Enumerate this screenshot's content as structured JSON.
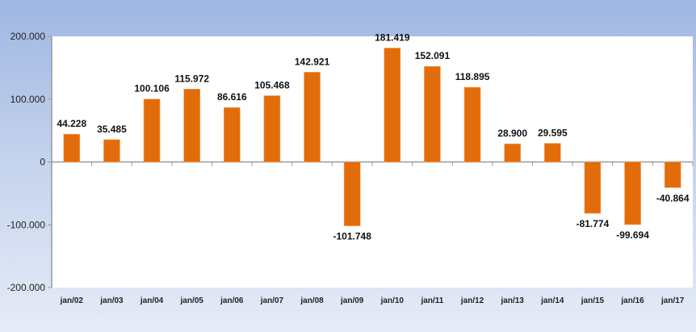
{
  "chart_data": {
    "type": "bar",
    "categories": [
      "jan/02",
      "jan/03",
      "jan/04",
      "jan/05",
      "jan/06",
      "jan/07",
      "jan/08",
      "jan/09",
      "jan/10",
      "jan/11",
      "jan/12",
      "jan/13",
      "jan/14",
      "jan/15",
      "jan/16",
      "jan/17"
    ],
    "values": [
      44228,
      35485,
      100106,
      115972,
      86616,
      105468,
      142921,
      -101748,
      181419,
      152091,
      118895,
      28900,
      29595,
      -81774,
      -99694,
      -40864
    ],
    "data_labels": [
      "44.228",
      "35.485",
      "100.106",
      "115.972",
      "86.616",
      "105.468",
      "142.921",
      "-101.748",
      "181.419",
      "152.091",
      "118.895",
      "28.900",
      "29.595",
      "-81.774",
      "-99.694",
      "-40.864"
    ],
    "yticks": [
      200000,
      100000,
      0,
      -100000,
      -200000
    ],
    "ytick_labels": [
      "200.000",
      "100.000",
      "0",
      "-100.000",
      "-200.000"
    ],
    "ylim": [
      -200000,
      200000
    ],
    "title": "",
    "xlabel": "",
    "ylabel": "",
    "grid": false,
    "bar_color": "#e36c0a"
  }
}
